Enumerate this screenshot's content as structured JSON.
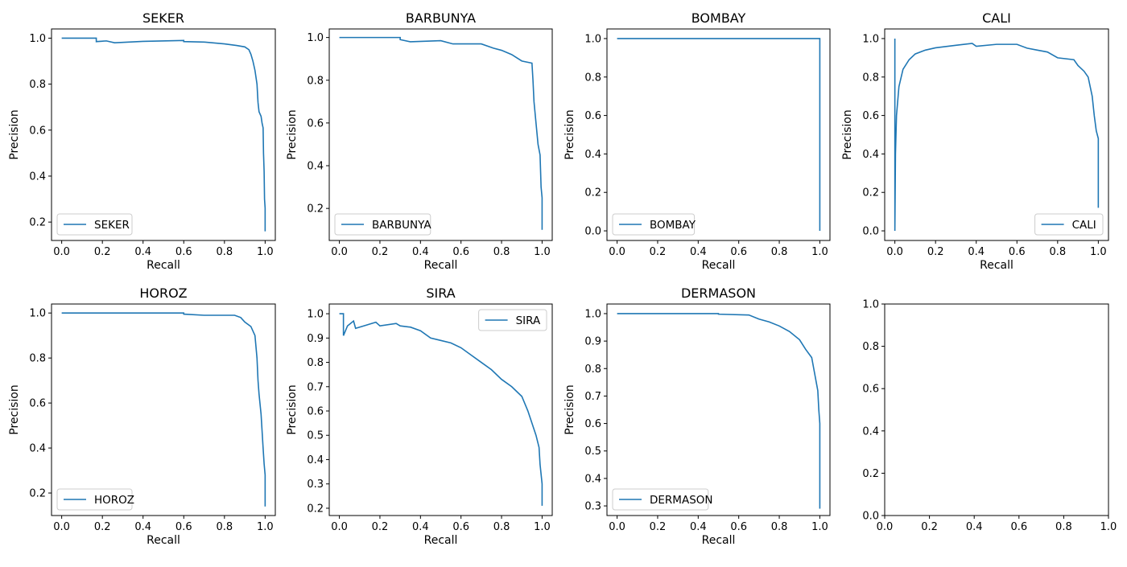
{
  "chart_data": [
    {
      "type": "line",
      "title": "SEKER",
      "xlabel": "Recall",
      "ylabel": "Precision",
      "xlim": [
        -0.05,
        1.05
      ],
      "ylim": [
        0.12,
        1.04
      ],
      "xticks": [
        "0.0",
        "0.2",
        "0.4",
        "0.6",
        "0.8",
        "1.0"
      ],
      "yticks": [
        "0.2",
        "0.4",
        "0.6",
        "0.8",
        "1.0"
      ],
      "legend": "lower left",
      "series": [
        {
          "name": "SEKER",
          "color": "#1f77b4",
          "points": [
            [
              0,
              1.0
            ],
            [
              0.17,
              1.0
            ],
            [
              0.17,
              0.985
            ],
            [
              0.22,
              0.988
            ],
            [
              0.26,
              0.98
            ],
            [
              0.4,
              0.986
            ],
            [
              0.6,
              0.99
            ],
            [
              0.6,
              0.985
            ],
            [
              0.7,
              0.983
            ],
            [
              0.8,
              0.975
            ],
            [
              0.86,
              0.968
            ],
            [
              0.9,
              0.962
            ],
            [
              0.92,
              0.95
            ],
            [
              0.93,
              0.93
            ],
            [
              0.94,
              0.9
            ],
            [
              0.95,
              0.86
            ],
            [
              0.96,
              0.8
            ],
            [
              0.965,
              0.72
            ],
            [
              0.97,
              0.68
            ],
            [
              0.98,
              0.66
            ],
            [
              0.985,
              0.63
            ],
            [
              0.99,
              0.61
            ],
            [
              0.992,
              0.5
            ],
            [
              0.995,
              0.42
            ],
            [
              0.997,
              0.3
            ],
            [
              1.0,
              0.26
            ],
            [
              1.0,
              0.16
            ]
          ]
        }
      ]
    },
    {
      "type": "line",
      "title": "BARBUNYA",
      "xlabel": "Recall",
      "ylabel": "Precision",
      "xlim": [
        -0.05,
        1.05
      ],
      "ylim": [
        0.05,
        1.04
      ],
      "xticks": [
        "0.0",
        "0.2",
        "0.4",
        "0.6",
        "0.8",
        "1.0"
      ],
      "yticks": [
        "0.2",
        "0.4",
        "0.6",
        "0.8",
        "1.0"
      ],
      "legend": "lower left",
      "series": [
        {
          "name": "BARBUNYA",
          "color": "#1f77b4",
          "points": [
            [
              0,
              1.0
            ],
            [
              0.3,
              1.0
            ],
            [
              0.3,
              0.99
            ],
            [
              0.35,
              0.98
            ],
            [
              0.5,
              0.985
            ],
            [
              0.56,
              0.97
            ],
            [
              0.7,
              0.97
            ],
            [
              0.76,
              0.95
            ],
            [
              0.8,
              0.94
            ],
            [
              0.85,
              0.92
            ],
            [
              0.9,
              0.89
            ],
            [
              0.95,
              0.88
            ],
            [
              0.955,
              0.8
            ],
            [
              0.96,
              0.7
            ],
            [
              0.97,
              0.6
            ],
            [
              0.98,
              0.5
            ],
            [
              0.99,
              0.45
            ],
            [
              0.995,
              0.3
            ],
            [
              1.0,
              0.25
            ],
            [
              1.0,
              0.1
            ]
          ]
        }
      ]
    },
    {
      "type": "line",
      "title": "BOMBAY",
      "xlabel": "Recall",
      "ylabel": "Precision",
      "xlim": [
        -0.05,
        1.05
      ],
      "ylim": [
        -0.05,
        1.05
      ],
      "xticks": [
        "0.0",
        "0.2",
        "0.4",
        "0.6",
        "0.8",
        "1.0"
      ],
      "yticks": [
        "0.0",
        "0.2",
        "0.4",
        "0.6",
        "0.8",
        "1.0"
      ],
      "legend": "lower left",
      "series": [
        {
          "name": "BOMBAY",
          "color": "#1f77b4",
          "points": [
            [
              0,
              1.0
            ],
            [
              1.0,
              1.0
            ],
            [
              1.0,
              0.0
            ]
          ]
        }
      ]
    },
    {
      "type": "line",
      "title": "CALI",
      "xlabel": "Recall",
      "ylabel": "Precision",
      "xlim": [
        -0.05,
        1.05
      ],
      "ylim": [
        -0.05,
        1.05
      ],
      "xticks": [
        "0.0",
        "0.2",
        "0.4",
        "0.6",
        "0.8",
        "1.0"
      ],
      "yticks": [
        "0.0",
        "0.2",
        "0.4",
        "0.6",
        "0.8",
        "1.0"
      ],
      "legend": "lower right",
      "series": [
        {
          "name": "CALI",
          "color": "#1f77b4",
          "points": [
            [
              0,
              0.0
            ],
            [
              0,
              1.0
            ],
            [
              0,
              0.0
            ],
            [
              0.003,
              0.4
            ],
            [
              0.008,
              0.6
            ],
            [
              0.02,
              0.75
            ],
            [
              0.04,
              0.84
            ],
            [
              0.07,
              0.89
            ],
            [
              0.1,
              0.92
            ],
            [
              0.15,
              0.94
            ],
            [
              0.2,
              0.952
            ],
            [
              0.3,
              0.965
            ],
            [
              0.38,
              0.975
            ],
            [
              0.4,
              0.96
            ],
            [
              0.5,
              0.97
            ],
            [
              0.6,
              0.97
            ],
            [
              0.65,
              0.95
            ],
            [
              0.7,
              0.94
            ],
            [
              0.75,
              0.93
            ],
            [
              0.8,
              0.9
            ],
            [
              0.88,
              0.89
            ],
            [
              0.9,
              0.86
            ],
            [
              0.93,
              0.83
            ],
            [
              0.95,
              0.8
            ],
            [
              0.97,
              0.7
            ],
            [
              0.98,
              0.6
            ],
            [
              0.99,
              0.52
            ],
            [
              1.0,
              0.48
            ],
            [
              1.0,
              0.2
            ],
            [
              1.0,
              0.12
            ]
          ]
        }
      ]
    },
    {
      "type": "line",
      "title": "HOROZ",
      "xlabel": "Recall",
      "ylabel": "Precision",
      "xlim": [
        -0.05,
        1.05
      ],
      "ylim": [
        0.1,
        1.04
      ],
      "xticks": [
        "0.0",
        "0.2",
        "0.4",
        "0.6",
        "0.8",
        "1.0"
      ],
      "yticks": [
        "0.2",
        "0.4",
        "0.6",
        "0.8",
        "1.0"
      ],
      "legend": "lower left",
      "series": [
        {
          "name": "HOROZ",
          "color": "#1f77b4",
          "points": [
            [
              0,
              1.0
            ],
            [
              0.6,
              1.0
            ],
            [
              0.6,
              0.995
            ],
            [
              0.7,
              0.99
            ],
            [
              0.85,
              0.99
            ],
            [
              0.88,
              0.98
            ],
            [
              0.9,
              0.96
            ],
            [
              0.93,
              0.94
            ],
            [
              0.95,
              0.9
            ],
            [
              0.96,
              0.8
            ],
            [
              0.965,
              0.7
            ],
            [
              0.97,
              0.64
            ],
            [
              0.98,
              0.55
            ],
            [
              0.99,
              0.4
            ],
            [
              0.995,
              0.33
            ],
            [
              1.0,
              0.28
            ],
            [
              1.0,
              0.14
            ]
          ]
        }
      ]
    },
    {
      "type": "line",
      "title": "SIRA",
      "xlabel": "Recall",
      "ylabel": "Precision",
      "xlim": [
        -0.05,
        1.05
      ],
      "ylim": [
        0.17,
        1.04
      ],
      "xticks": [
        "0.0",
        "0.2",
        "0.4",
        "0.6",
        "0.8",
        "1.0"
      ],
      "yticks": [
        "0.2",
        "0.3",
        "0.4",
        "0.5",
        "0.6",
        "0.7",
        "0.8",
        "0.9",
        "1.0"
      ],
      "legend": "upper right",
      "series": [
        {
          "name": "SIRA",
          "color": "#1f77b4",
          "points": [
            [
              0,
              1.0
            ],
            [
              0.02,
              1.0
            ],
            [
              0.02,
              0.91
            ],
            [
              0.04,
              0.95
            ],
            [
              0.07,
              0.97
            ],
            [
              0.08,
              0.94
            ],
            [
              0.12,
              0.95
            ],
            [
              0.18,
              0.965
            ],
            [
              0.2,
              0.95
            ],
            [
              0.28,
              0.96
            ],
            [
              0.3,
              0.95
            ],
            [
              0.35,
              0.945
            ],
            [
              0.4,
              0.93
            ],
            [
              0.45,
              0.9
            ],
            [
              0.5,
              0.89
            ],
            [
              0.55,
              0.88
            ],
            [
              0.6,
              0.86
            ],
            [
              0.65,
              0.83
            ],
            [
              0.7,
              0.8
            ],
            [
              0.75,
              0.77
            ],
            [
              0.8,
              0.73
            ],
            [
              0.85,
              0.7
            ],
            [
              0.9,
              0.66
            ],
            [
              0.93,
              0.6
            ],
            [
              0.95,
              0.55
            ],
            [
              0.97,
              0.5
            ],
            [
              0.985,
              0.45
            ],
            [
              0.99,
              0.38
            ],
            [
              1.0,
              0.3
            ],
            [
              1.0,
              0.21
            ]
          ]
        }
      ]
    },
    {
      "type": "line",
      "title": "DERMASON",
      "xlabel": "Recall",
      "ylabel": "Precision",
      "xlim": [
        -0.05,
        1.05
      ],
      "ylim": [
        0.265,
        1.035
      ],
      "xticks": [
        "0.0",
        "0.2",
        "0.4",
        "0.6",
        "0.8",
        "1.0"
      ],
      "yticks": [
        "0.3",
        "0.4",
        "0.5",
        "0.6",
        "0.7",
        "0.8",
        "0.9",
        "1.0"
      ],
      "legend": "lower left",
      "series": [
        {
          "name": "DERMASON",
          "color": "#1f77b4",
          "points": [
            [
              0,
              1.0
            ],
            [
              0.5,
              1.0
            ],
            [
              0.5,
              0.998
            ],
            [
              0.65,
              0.995
            ],
            [
              0.7,
              0.98
            ],
            [
              0.75,
              0.97
            ],
            [
              0.8,
              0.955
            ],
            [
              0.85,
              0.935
            ],
            [
              0.9,
              0.905
            ],
            [
              0.93,
              0.87
            ],
            [
              0.96,
              0.84
            ],
            [
              0.97,
              0.8
            ],
            [
              0.98,
              0.76
            ],
            [
              0.99,
              0.72
            ],
            [
              0.995,
              0.65
            ],
            [
              1.0,
              0.6
            ],
            [
              1.0,
              0.29
            ]
          ]
        }
      ]
    },
    {
      "type": "line",
      "title": "",
      "xlabel": "",
      "ylabel": "",
      "xlim": [
        0,
        1
      ],
      "ylim": [
        0,
        1
      ],
      "xticks": [
        "0.0",
        "0.2",
        "0.4",
        "0.6",
        "0.8",
        "1.0"
      ],
      "yticks": [
        "0.0",
        "0.2",
        "0.4",
        "0.6",
        "0.8",
        "1.0"
      ],
      "legend": "",
      "series": []
    }
  ]
}
